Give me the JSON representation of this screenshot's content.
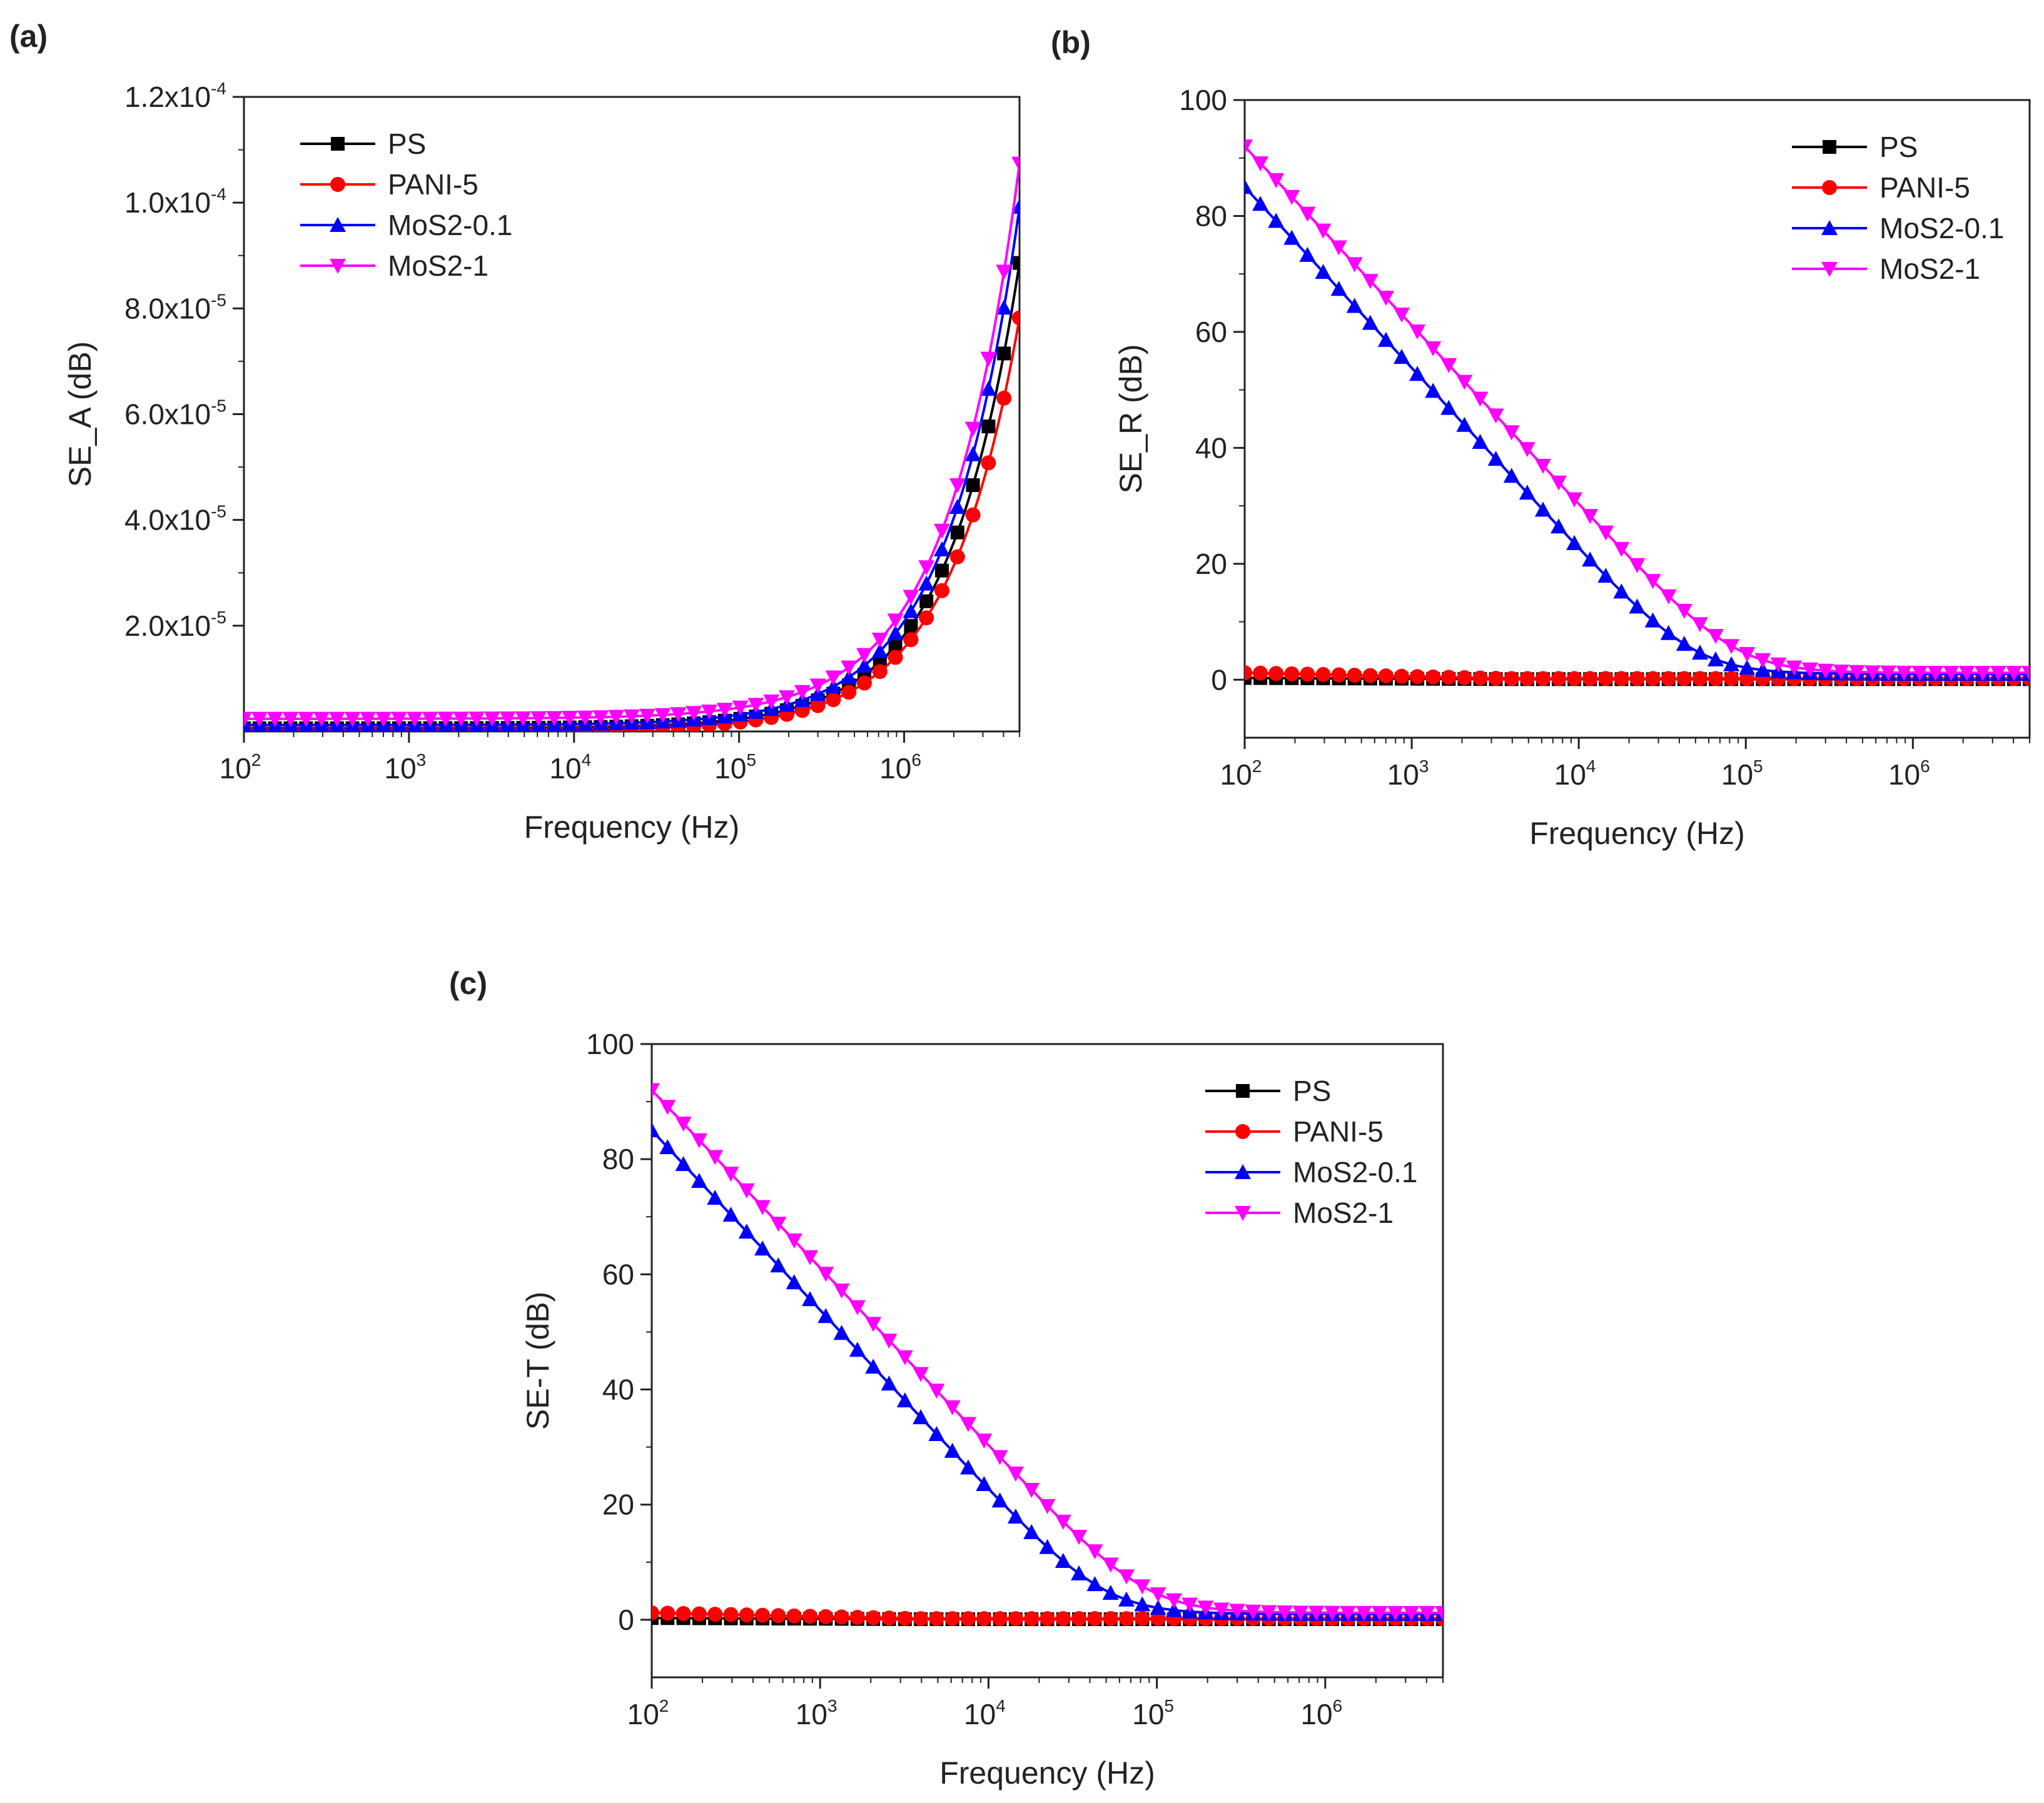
{
  "figure": {
    "series_styles": [
      {
        "name": "PS",
        "color": "#000000",
        "marker": "square"
      },
      {
        "name": "PANI-5",
        "color": "#ff0000",
        "marker": "circle"
      },
      {
        "name": "MoS2-0.1",
        "color": "#0000ff",
        "marker": "triangle-up"
      },
      {
        "name": "MoS2-1",
        "color": "#ff00ff",
        "marker": "triangle-down"
      }
    ]
  },
  "chart_data": [
    {
      "id": "a",
      "panel_label": "(a)",
      "type": "line",
      "xscale": "log",
      "xlim": [
        100,
        5000000
      ],
      "ylim": [
        0,
        0.00012
      ],
      "xlabel": "Frequency (Hz)",
      "ylabel": "SE_A (dB)",
      "xticks": [
        {
          "base": "10",
          "exp": "2",
          "value": 100
        },
        {
          "base": "10",
          "exp": "3",
          "value": 1000
        },
        {
          "base": "10",
          "exp": "4",
          "value": 10000
        },
        {
          "base": "10",
          "exp": "5",
          "value": 100000
        },
        {
          "base": "10",
          "exp": "6",
          "value": 1000000
        }
      ],
      "yticks": [
        {
          "value": 2e-05,
          "mant": "2.0x10",
          "exp": "-5"
        },
        {
          "value": 4e-05,
          "mant": "4.0x10",
          "exp": "-5"
        },
        {
          "value": 6e-05,
          "mant": "6.0x10",
          "exp": "-5"
        },
        {
          "value": 8e-05,
          "mant": "8.0x10",
          "exp": "-5"
        },
        {
          "value": 0.0001,
          "mant": "1.0x10",
          "exp": "-4"
        },
        {
          "value": 0.00012,
          "mant": "1.2x10",
          "exp": "-4"
        }
      ],
      "legend": {
        "position": "top-left",
        "entries": [
          "PS",
          "PANI-5",
          "MoS2-0.1",
          "MoS2-1"
        ]
      },
      "series": [
        {
          "name": "PS",
          "model": "power",
          "params": {
            "a": 8.8e-05,
            "p": 1.0,
            "base": 6e-07
          }
        },
        {
          "name": "PANI-5",
          "model": "power",
          "params": {
            "a": 7.8e-05,
            "p": 1.0,
            "base": 2e-07
          }
        },
        {
          "name": "MoS2-0.1",
          "model": "power",
          "params": {
            "a": 9.8e-05,
            "p": 1.0,
            "base": 1.2e-06
          }
        },
        {
          "name": "MoS2-1",
          "model": "power",
          "params": {
            "a": 0.000105,
            "p": 1.0,
            "base": 2.4e-06
          }
        }
      ]
    },
    {
      "id": "b",
      "panel_label": "(b)",
      "type": "line",
      "xscale": "log",
      "xlim": [
        100,
        5000000
      ],
      "ylim": [
        -10,
        100
      ],
      "xlabel": "Frequency (Hz)",
      "ylabel": "SE_R (dB)",
      "xticks": [
        {
          "base": "10",
          "exp": "2",
          "value": 100
        },
        {
          "base": "10",
          "exp": "3",
          "value": 1000
        },
        {
          "base": "10",
          "exp": "4",
          "value": 10000
        },
        {
          "base": "10",
          "exp": "5",
          "value": 100000
        },
        {
          "base": "10",
          "exp": "6",
          "value": 1000000
        }
      ],
      "yticks": [
        {
          "value": 0,
          "label": "0"
        },
        {
          "value": 20,
          "label": "20"
        },
        {
          "value": 40,
          "label": "40"
        },
        {
          "value": 60,
          "label": "60"
        },
        {
          "value": 80,
          "label": "80"
        },
        {
          "value": 100,
          "label": "100"
        }
      ],
      "legend": {
        "position": "top-right",
        "entries": [
          "PS",
          "PANI-5",
          "MoS2-0.1",
          "MoS2-1"
        ]
      },
      "series": [
        {
          "name": "PS",
          "model": "flat",
          "params": {
            "y0": 0.3,
            "y1": 0.1
          }
        },
        {
          "name": "PANI-5",
          "model": "flat",
          "params": {
            "y0": 1.2,
            "y1": 0.2
          }
        },
        {
          "name": "MoS2-0.1",
          "model": "rolloff",
          "params": {
            "y0": 85,
            "fc": 60000,
            "floor": 1.0
          }
        },
        {
          "name": "MoS2-1",
          "model": "rolloff",
          "params": {
            "y0": 92,
            "fc": 110000,
            "floor": 1.2
          }
        }
      ]
    },
    {
      "id": "c",
      "panel_label": "(c)",
      "type": "line",
      "xscale": "log",
      "xlim": [
        100,
        5000000
      ],
      "ylim": [
        -10,
        100
      ],
      "xlabel": "Frequency (Hz)",
      "ylabel": "SE-T (dB)",
      "xticks": [
        {
          "base": "10",
          "exp": "2",
          "value": 100
        },
        {
          "base": "10",
          "exp": "3",
          "value": 1000
        },
        {
          "base": "10",
          "exp": "4",
          "value": 10000
        },
        {
          "base": "10",
          "exp": "5",
          "value": 100000
        },
        {
          "base": "10",
          "exp": "6",
          "value": 1000000
        }
      ],
      "yticks": [
        {
          "value": 0,
          "label": "0"
        },
        {
          "value": 20,
          "label": "20"
        },
        {
          "value": 40,
          "label": "40"
        },
        {
          "value": 60,
          "label": "60"
        },
        {
          "value": 80,
          "label": "80"
        },
        {
          "value": 100,
          "label": "100"
        }
      ],
      "legend": {
        "position": "top-right",
        "entries": [
          "PS",
          "PANI-5",
          "MoS2-0.1",
          "MoS2-1"
        ]
      },
      "series": [
        {
          "name": "PS",
          "model": "flat",
          "params": {
            "y0": 0.3,
            "y1": 0.1
          }
        },
        {
          "name": "PANI-5",
          "model": "flat",
          "params": {
            "y0": 1.2,
            "y1": 0.2
          }
        },
        {
          "name": "MoS2-0.1",
          "model": "rolloff",
          "params": {
            "y0": 85,
            "fc": 60000,
            "floor": 1.0
          }
        },
        {
          "name": "MoS2-1",
          "model": "rolloff",
          "params": {
            "y0": 92,
            "fc": 110000,
            "floor": 1.2
          }
        }
      ]
    }
  ]
}
